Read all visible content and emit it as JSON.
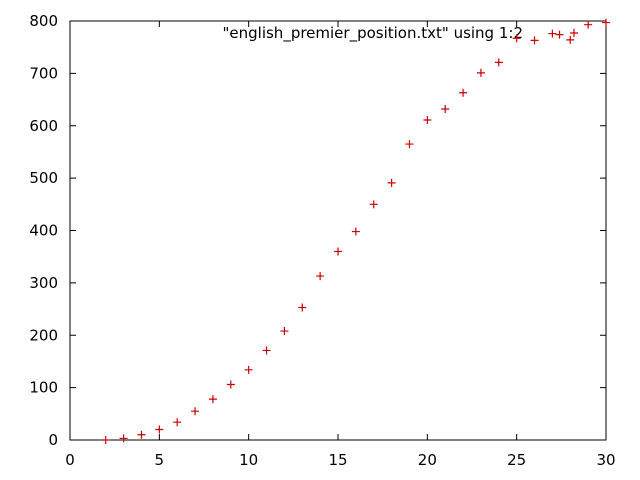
{
  "chart_data": {
    "type": "scatter",
    "title": "",
    "xlabel": "",
    "ylabel": "",
    "xlim": [
      0,
      30
    ],
    "ylim": [
      0,
      800
    ],
    "xticks": [
      0,
      5,
      10,
      15,
      20,
      25,
      30
    ],
    "yticks": [
      0,
      100,
      200,
      300,
      400,
      500,
      600,
      700,
      800
    ],
    "grid": false,
    "legend_position": "top-right",
    "marker": "plus",
    "series": [
      {
        "name": "\"english_premier_position.txt\" using 1:2",
        "color": "#cc0000",
        "points": [
          [
            2,
            0
          ],
          [
            3,
            3
          ],
          [
            4,
            10
          ],
          [
            5,
            20
          ],
          [
            6,
            34
          ],
          [
            7,
            55
          ],
          [
            8,
            78
          ],
          [
            9,
            106
          ],
          [
            10,
            134
          ],
          [
            11,
            171
          ],
          [
            12,
            208
          ],
          [
            13,
            253
          ],
          [
            14,
            313
          ],
          [
            15,
            360
          ],
          [
            16,
            398
          ],
          [
            17,
            450
          ],
          [
            18,
            491
          ],
          [
            19,
            565
          ],
          [
            20,
            611
          ],
          [
            21,
            632
          ],
          [
            22,
            663
          ],
          [
            23,
            701
          ],
          [
            24,
            721
          ],
          [
            25,
            767
          ],
          [
            26,
            763
          ],
          [
            27,
            776
          ],
          [
            27.4,
            774
          ],
          [
            28,
            764
          ],
          [
            29,
            793
          ],
          [
            30,
            797
          ]
        ]
      }
    ]
  }
}
